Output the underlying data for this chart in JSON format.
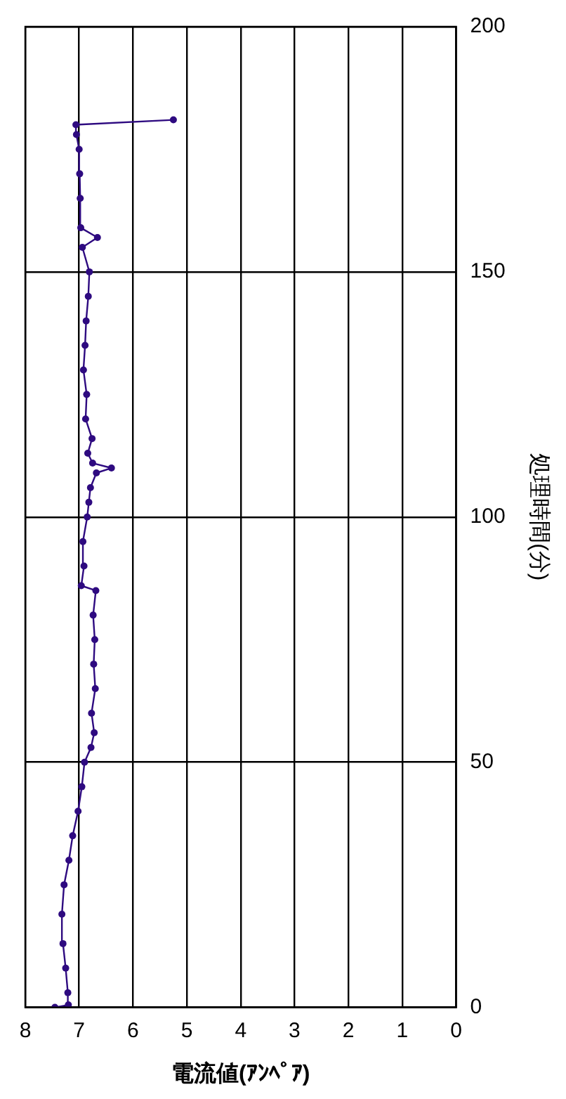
{
  "chart_data": {
    "type": "line",
    "xlabel": "電流値(ｱﾝﾍﾟｱ)",
    "ylabel": "処理時間(分)",
    "xlim": [
      8,
      0
    ],
    "xticks": [
      8,
      7,
      6,
      5,
      4,
      3,
      2,
      1,
      0
    ],
    "ylim": [
      0,
      200
    ],
    "yticks": [
      0,
      50,
      100,
      150,
      200
    ],
    "grid": true,
    "legend": false,
    "marker": "circle",
    "line_style": "solid",
    "series": [
      {
        "color": "#2e0a80",
        "x": [
          7.45,
          7.2,
          7.21,
          7.25,
          7.3,
          7.32,
          7.28,
          7.19,
          7.12,
          7.02,
          6.95,
          6.9,
          6.78,
          6.72,
          6.77,
          6.7,
          6.73,
          6.71,
          6.74,
          6.69,
          6.96,
          6.91,
          6.93,
          6.85,
          6.82,
          6.79,
          6.68,
          6.4,
          6.75,
          6.84,
          6.76,
          6.88,
          6.86,
          6.92,
          6.89,
          6.87,
          6.83,
          6.81,
          6.94,
          6.66,
          6.97,
          6.98,
          6.99,
          7.0,
          7.05,
          7.06,
          5.25
        ],
        "values": [
          0,
          0.5,
          3,
          8,
          13,
          19,
          25,
          30,
          35,
          40,
          45,
          50,
          53,
          56,
          60,
          65,
          70,
          75,
          80,
          85,
          86,
          90,
          95,
          100,
          103,
          106,
          109,
          110,
          111,
          113,
          116,
          120,
          125,
          130,
          135,
          140,
          145,
          150,
          155,
          157,
          159,
          165,
          170,
          175,
          178,
          180,
          181
        ]
      }
    ]
  }
}
